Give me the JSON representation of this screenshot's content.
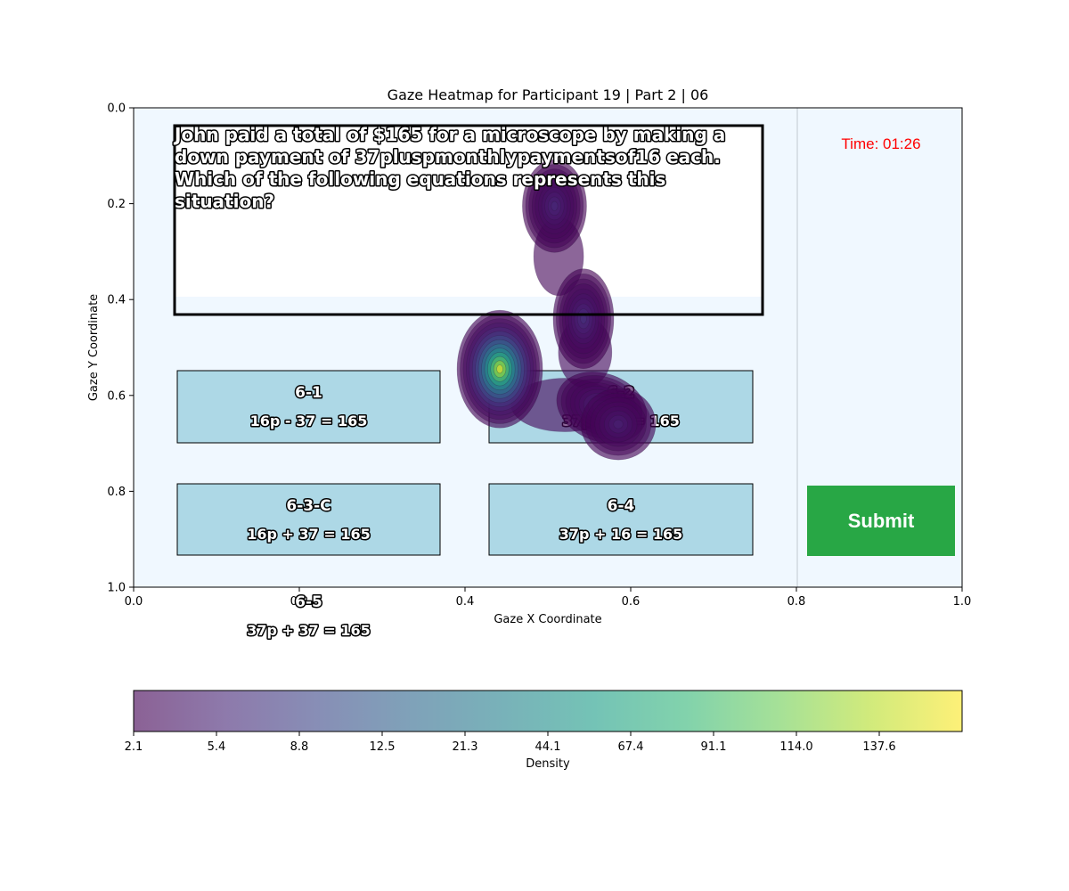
{
  "chart_data": {
    "type": "heatmap",
    "title": "Gaze Heatmap for Participant 19 | Part 2 | 06",
    "xlabel": "Gaze X Coordinate",
    "ylabel": "Gaze Y Coordinate",
    "xlim": [
      0.0,
      1.0
    ],
    "ylim": [
      1.0,
      0.0
    ],
    "x_ticks": [
      "0.0",
      "0.2",
      "0.4",
      "0.6",
      "0.8",
      "1.0"
    ],
    "y_ticks": [
      "0.0",
      "0.2",
      "0.4",
      "0.6",
      "0.8",
      "1.0"
    ],
    "grid": false,
    "density_peaks": [
      {
        "x": 0.442,
        "y": 0.545,
        "weight": 1.0
      },
      {
        "x": 0.508,
        "y": 0.205,
        "weight": 0.12
      },
      {
        "x": 0.543,
        "y": 0.44,
        "weight": 0.15
      },
      {
        "x": 0.565,
        "y": 0.625,
        "weight": 0.14
      },
      {
        "x": 0.585,
        "y": 0.66,
        "weight": 0.1
      }
    ],
    "colorbar": {
      "label": "Density",
      "ticks": [
        "2.1",
        "5.4",
        "8.8",
        "12.5",
        "21.3",
        "44.1",
        "67.4",
        "91.1",
        "114.0",
        "137.6"
      ],
      "colors": [
        "#440154",
        "#482878",
        "#3e4989",
        "#31688e",
        "#26828e",
        "#1f9e89",
        "#35b779",
        "#6ece58",
        "#b5de2b",
        "#fde725"
      ]
    }
  },
  "stimulus": {
    "question": {
      "lines": [
        "John paid a total of $165 for a microscope by making a",
        "down payment of 37pluspmonthlypaymentsof16 each.",
        "Which of the following equations represents this",
        "situation?"
      ]
    },
    "timer": "Time: 01:26",
    "submit_label": "Submit",
    "options": [
      {
        "id": "6-1",
        "equation": "16p - 37 = 165"
      },
      {
        "id": "6-2",
        "equation": "37p - 16 = 165"
      },
      {
        "id": "6-3-C",
        "equation": "16p + 37 = 165"
      },
      {
        "id": "6-4",
        "equation": "37p + 16 = 165"
      },
      {
        "id": "6-5",
        "equation": "37p + 37 = 165"
      }
    ],
    "colors": {
      "background": "#f0f8ff",
      "option_fill": "#add8e6",
      "submit_fill": "#28a745",
      "timer": "#ff0000"
    }
  }
}
